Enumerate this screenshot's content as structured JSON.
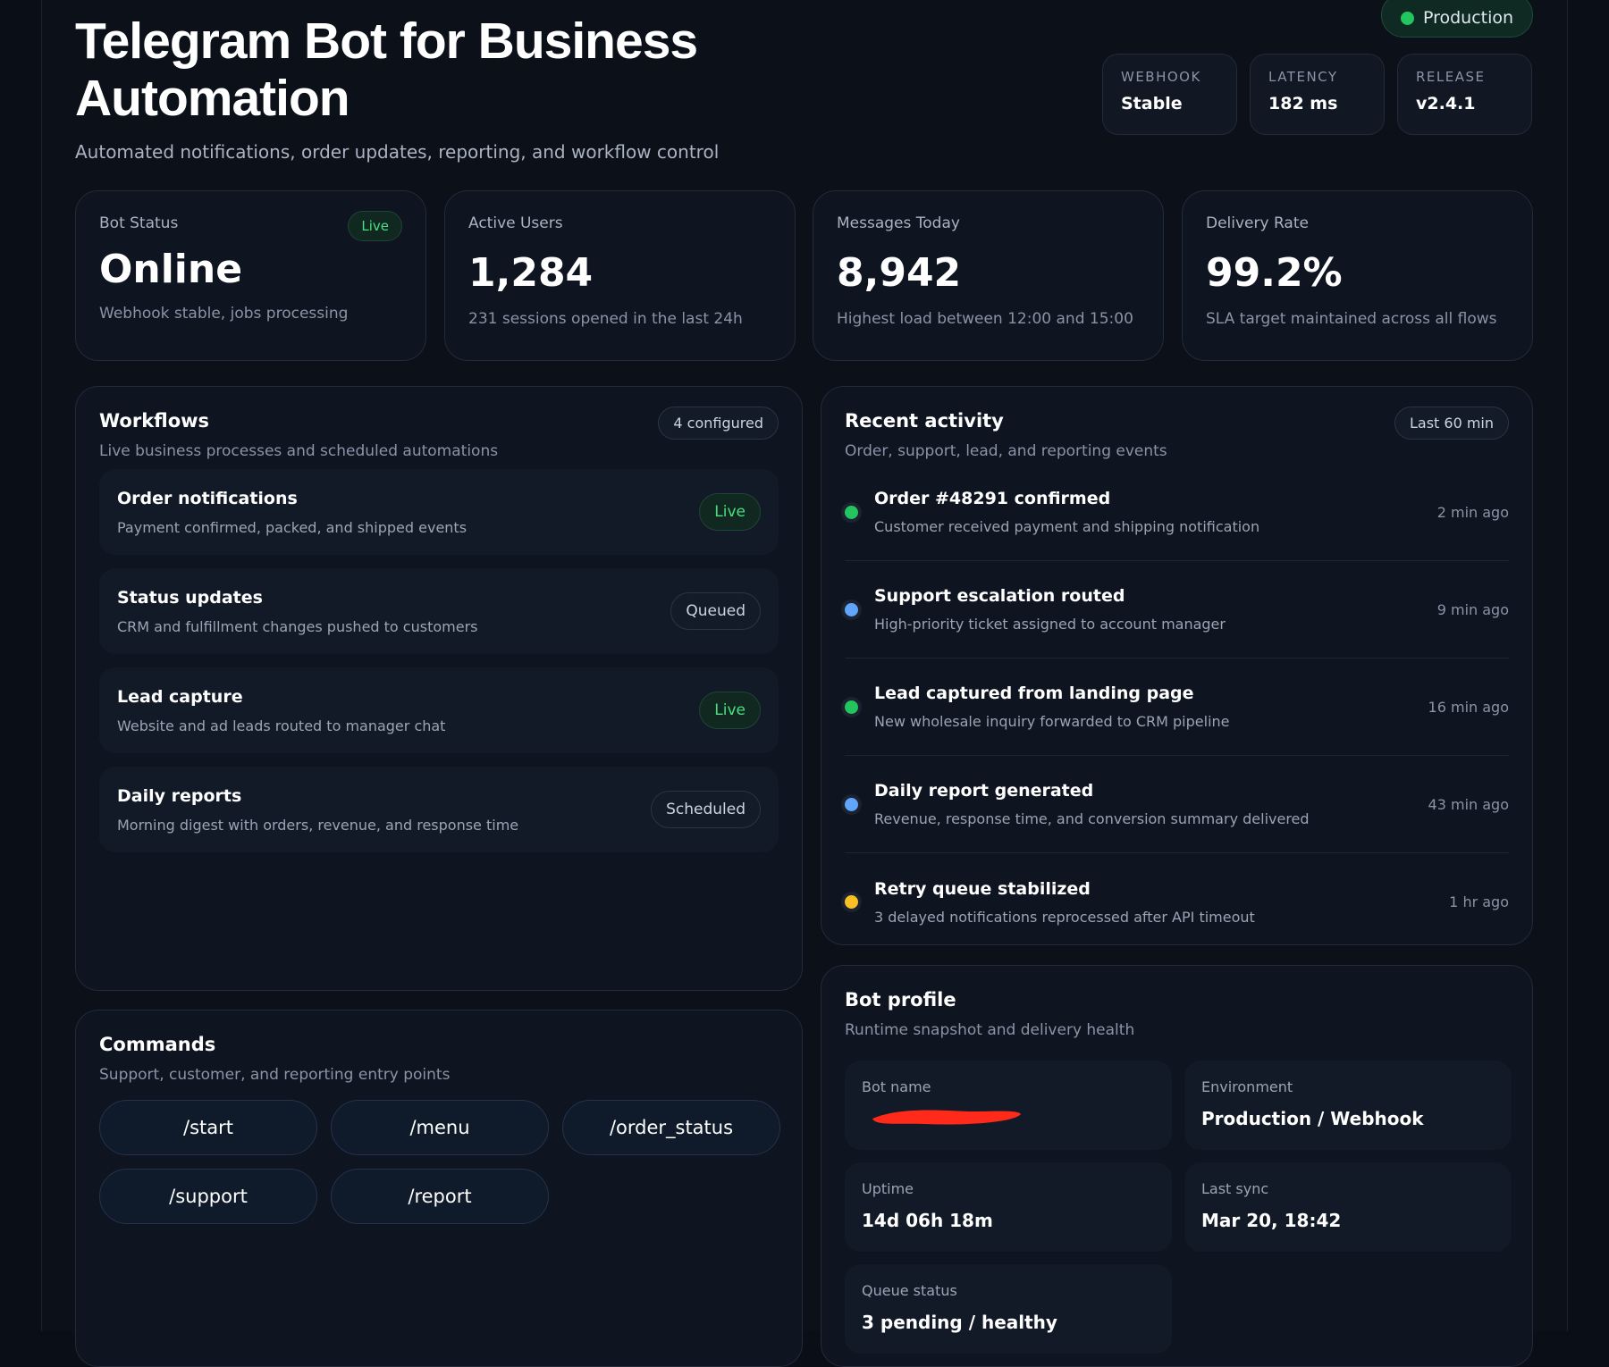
{
  "header": {
    "badge": "Production",
    "title": "Telegram Bot for Business Automation",
    "subtitle": "Automated notifications, order updates, reporting, and workflow control",
    "stats": [
      {
        "label": "WEBHOOK",
        "value": "Stable"
      },
      {
        "label": "LATENCY",
        "value": "182 ms"
      },
      {
        "label": "RELEASE",
        "value": "v2.4.1"
      }
    ]
  },
  "kpis": [
    {
      "label": "Bot Status",
      "badge": "Live",
      "value": "Online",
      "note": "Webhook stable, jobs processing"
    },
    {
      "label": "Active Users",
      "value": "1,284",
      "note": "231 sessions opened in the last 24h"
    },
    {
      "label": "Messages Today",
      "value": "8,942",
      "note": "Highest load between 12:00 and 15:00"
    },
    {
      "label": "Delivery Rate",
      "value": "99.2%",
      "note": "SLA target maintained across all flows"
    }
  ],
  "workflows": {
    "title": "Workflows",
    "subtitle": "Live business processes and scheduled automations",
    "count": "4 configured",
    "items": [
      {
        "name": "Order notifications",
        "desc": "Payment confirmed, packed, and shipped events",
        "status": "Live",
        "color": "#4ade80"
      },
      {
        "name": "Status updates",
        "desc": "CRM and fulfillment changes pushed to customers",
        "status": "Queued",
        "color": "#cbd5e1"
      },
      {
        "name": "Lead capture",
        "desc": "Website and ad leads routed to manager chat",
        "status": "Live",
        "color": "#4ade80"
      },
      {
        "name": "Daily reports",
        "desc": "Morning digest with orders, revenue, and response time",
        "status": "Scheduled",
        "color": "#cbd5e1"
      }
    ]
  },
  "commands": {
    "title": "Commands",
    "subtitle": "Support, customer, and reporting entry points",
    "items": [
      "/start",
      "/menu",
      "/order_status",
      "/support",
      "/report"
    ]
  },
  "activity": {
    "title": "Recent activity",
    "subtitle": "Order, support, lead, and reporting events",
    "range": "Last 60 min",
    "items": [
      {
        "title": "Order #48291 confirmed",
        "desc": "Customer received payment and shipping notification",
        "time": "2 min ago",
        "color": "#22c55e"
      },
      {
        "title": "Support escalation routed",
        "desc": "High-priority ticket assigned to account manager",
        "time": "9 min ago",
        "color": "#60a5fa"
      },
      {
        "title": "Lead captured from landing page",
        "desc": "New wholesale inquiry forwarded to CRM pipeline",
        "time": "16 min ago",
        "color": "#22c55e"
      },
      {
        "title": "Daily report generated",
        "desc": "Revenue, response time, and conversion summary delivered",
        "time": "43 min ago",
        "color": "#60a5fa"
      },
      {
        "title": "Retry queue stabilized",
        "desc": "3 delayed notifications reprocessed after API timeout",
        "time": "1 hr ago",
        "color": "#fbbf24"
      }
    ]
  },
  "profile": {
    "title": "Bot profile",
    "subtitle": "Runtime snapshot and delivery health",
    "fields": [
      {
        "label": "Bot name"
      },
      {
        "label": "Environment",
        "value": "Production / Webhook"
      },
      {
        "label": "Uptime",
        "value": "14d 06h 18m"
      },
      {
        "label": "Last sync",
        "value": "Mar 20, 18:42"
      },
      {
        "label": "Queue status",
        "value": "3 pending / healthy"
      }
    ]
  }
}
